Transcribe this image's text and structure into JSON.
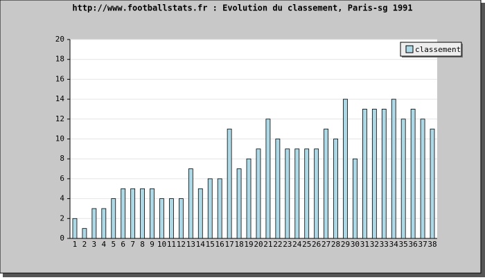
{
  "chart_data": {
    "type": "bar",
    "title": "http://www.footballstats.fr : Evolution du classement, Paris-sg 1991",
    "categories": [
      "1",
      "2",
      "3",
      "4",
      "5",
      "6",
      "7",
      "8",
      "9",
      "10",
      "11",
      "12",
      "13",
      "14",
      "15",
      "16",
      "17",
      "18",
      "19",
      "20",
      "21",
      "22",
      "23",
      "24",
      "25",
      "26",
      "27",
      "28",
      "29",
      "30",
      "31",
      "32",
      "33",
      "34",
      "35",
      "36",
      "37",
      "38"
    ],
    "series": [
      {
        "name": "classement",
        "color": "#add8e6",
        "values": [
          2,
          1,
          3,
          3,
          4,
          5,
          5,
          5,
          5,
          4,
          4,
          4,
          7,
          5,
          6,
          6,
          11,
          7,
          8,
          9,
          12,
          10,
          9,
          9,
          9,
          9,
          11,
          10,
          14,
          8,
          13,
          13,
          13,
          14,
          12,
          13,
          12,
          11
        ]
      }
    ],
    "ylim": [
      0,
      20
    ],
    "yticks": [
      0,
      2,
      4,
      6,
      8,
      10,
      12,
      14,
      16,
      18,
      20
    ],
    "grid": true,
    "legend": "top-right"
  }
}
